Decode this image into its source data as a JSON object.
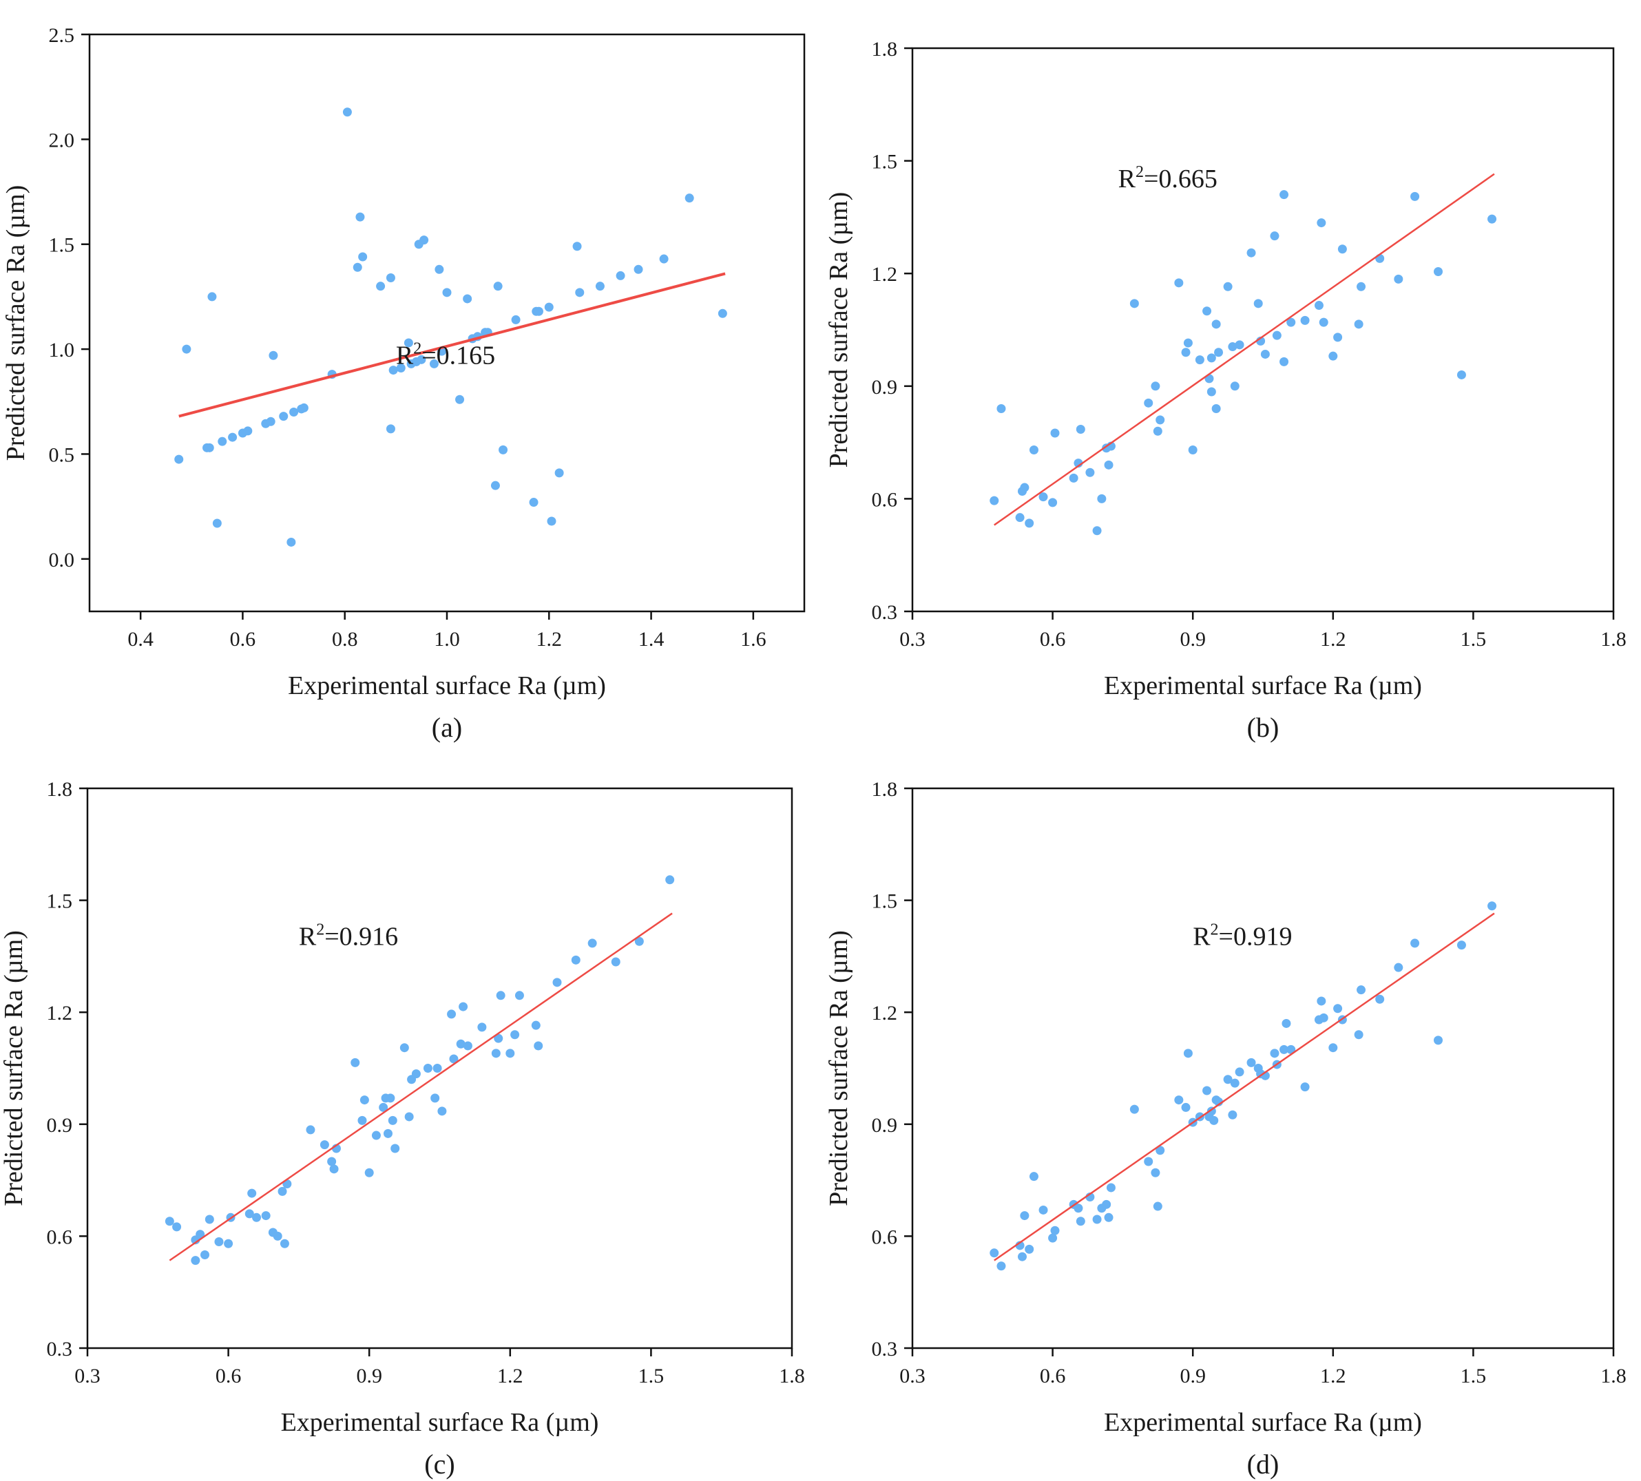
{
  "figure": {
    "colors": {
      "points": "#67b1f3",
      "fit_line": "#ee4b45",
      "axes": "#111111"
    }
  },
  "chart_data": [
    {
      "type": "scatter",
      "panel": "(a)",
      "xlabel": "Experimental surface Ra (µm)",
      "ylabel": "Predicted surface Ra (µm)",
      "xlim": [
        0.3,
        1.7
      ],
      "ylim": [
        -0.25,
        2.5
      ],
      "xticks": [
        0.4,
        0.6,
        0.8,
        1.0,
        1.2,
        1.4,
        1.6
      ],
      "yticks": [
        0.0,
        0.5,
        1.0,
        1.5,
        2.0,
        2.5
      ],
      "tick_decimals": 1,
      "fit_line": {
        "x": [
          0.475,
          1.545
        ],
        "y": [
          0.68,
          1.36
        ]
      },
      "annotation": {
        "prefix": "R",
        "sup": "2",
        "value": "=0.165",
        "at": [
          0.9,
          0.93
        ]
      },
      "points": [
        [
          0.475,
          0.475
        ],
        [
          0.49,
          1.0
        ],
        [
          0.53,
          0.53
        ],
        [
          0.535,
          0.53
        ],
        [
          0.54,
          1.25
        ],
        [
          0.55,
          0.17
        ],
        [
          0.56,
          0.56
        ],
        [
          0.58,
          0.58
        ],
        [
          0.6,
          0.6
        ],
        [
          0.61,
          0.61
        ],
        [
          0.645,
          0.645
        ],
        [
          0.655,
          0.655
        ],
        [
          0.66,
          0.97
        ],
        [
          0.68,
          0.68
        ],
        [
          0.695,
          0.08
        ],
        [
          0.7,
          0.7
        ],
        [
          0.715,
          0.715
        ],
        [
          0.72,
          0.72
        ],
        [
          0.775,
          0.88
        ],
        [
          0.805,
          2.13
        ],
        [
          0.825,
          1.39
        ],
        [
          0.83,
          1.63
        ],
        [
          0.835,
          1.44
        ],
        [
          0.87,
          1.3
        ],
        [
          0.89,
          1.34
        ],
        [
          0.89,
          0.62
        ],
        [
          0.895,
          0.9
        ],
        [
          0.91,
          0.91
        ],
        [
          0.925,
          1.03
        ],
        [
          0.93,
          0.93
        ],
        [
          0.94,
          0.94
        ],
        [
          0.945,
          1.5
        ],
        [
          0.95,
          0.95
        ],
        [
          0.955,
          1.52
        ],
        [
          0.975,
          0.93
        ],
        [
          0.985,
          1.38
        ],
        [
          0.99,
          0.99
        ],
        [
          1.0,
          1.27
        ],
        [
          1.025,
          0.76
        ],
        [
          1.04,
          1.24
        ],
        [
          1.05,
          1.05
        ],
        [
          1.06,
          1.06
        ],
        [
          1.075,
          1.08
        ],
        [
          1.08,
          1.08
        ],
        [
          1.095,
          0.35
        ],
        [
          1.1,
          1.3
        ],
        [
          1.11,
          0.52
        ],
        [
          1.135,
          1.14
        ],
        [
          1.17,
          0.27
        ],
        [
          1.175,
          1.18
        ],
        [
          1.18,
          1.18
        ],
        [
          1.2,
          1.2
        ],
        [
          1.205,
          0.18
        ],
        [
          1.22,
          0.41
        ],
        [
          1.255,
          1.49
        ],
        [
          1.26,
          1.27
        ],
        [
          1.3,
          1.3
        ],
        [
          1.34,
          1.35
        ],
        [
          1.375,
          1.38
        ],
        [
          1.425,
          1.43
        ],
        [
          1.475,
          1.72
        ],
        [
          1.54,
          1.17
        ]
      ]
    },
    {
      "type": "scatter",
      "panel": "(b)",
      "xlabel": "Experimental surface Ra (µm)",
      "ylabel": "Predicted surface Ra (µm)",
      "xlim": [
        0.3,
        1.8
      ],
      "ylim": [
        0.3,
        1.8
      ],
      "xticks": [
        0.3,
        0.6,
        0.9,
        1.2,
        1.5,
        1.8
      ],
      "yticks": [
        0.3,
        0.6,
        0.9,
        1.2,
        1.5,
        1.8
      ],
      "tick_decimals": 1,
      "fit_line": {
        "x": [
          0.475,
          1.545
        ],
        "y": [
          0.53,
          1.465
        ]
      },
      "annotation": {
        "prefix": "R",
        "sup": "2",
        "value": "=0.665",
        "at": [
          0.74,
          1.43
        ]
      },
      "points": [
        [
          0.475,
          0.595
        ],
        [
          0.49,
          0.84
        ],
        [
          0.53,
          0.55
        ],
        [
          0.535,
          0.62
        ],
        [
          0.54,
          0.63
        ],
        [
          0.55,
          0.535
        ],
        [
          0.56,
          0.73
        ],
        [
          0.58,
          0.605
        ],
        [
          0.6,
          0.59
        ],
        [
          0.605,
          0.775
        ],
        [
          0.645,
          0.655
        ],
        [
          0.655,
          0.695
        ],
        [
          0.66,
          0.785
        ],
        [
          0.68,
          0.67
        ],
        [
          0.695,
          0.515
        ],
        [
          0.705,
          0.6
        ],
        [
          0.715,
          0.735
        ],
        [
          0.72,
          0.69
        ],
        [
          0.725,
          0.74
        ],
        [
          0.775,
          1.12
        ],
        [
          0.805,
          0.855
        ],
        [
          0.82,
          0.9
        ],
        [
          0.825,
          0.78
        ],
        [
          0.83,
          0.81
        ],
        [
          0.87,
          1.175
        ],
        [
          0.885,
          0.99
        ],
        [
          0.89,
          1.015
        ],
        [
          0.9,
          0.73
        ],
        [
          0.915,
          0.97
        ],
        [
          0.93,
          1.1
        ],
        [
          0.935,
          0.92
        ],
        [
          0.94,
          0.885
        ],
        [
          0.94,
          0.975
        ],
        [
          0.95,
          1.065
        ],
        [
          0.95,
          0.84
        ],
        [
          0.955,
          0.99
        ],
        [
          0.975,
          1.165
        ],
        [
          0.985,
          1.005
        ],
        [
          0.99,
          0.9
        ],
        [
          1.0,
          1.01
        ],
        [
          1.025,
          1.255
        ],
        [
          1.04,
          1.12
        ],
        [
          1.045,
          1.02
        ],
        [
          1.055,
          0.985
        ],
        [
          1.075,
          1.3
        ],
        [
          1.08,
          1.035
        ],
        [
          1.095,
          1.41
        ],
        [
          1.095,
          0.965
        ],
        [
          1.11,
          1.07
        ],
        [
          1.14,
          1.075
        ],
        [
          1.17,
          1.115
        ],
        [
          1.175,
          1.335
        ],
        [
          1.18,
          1.07
        ],
        [
          1.2,
          0.98
        ],
        [
          1.21,
          1.03
        ],
        [
          1.22,
          1.265
        ],
        [
          1.255,
          1.065
        ],
        [
          1.26,
          1.165
        ],
        [
          1.3,
          1.24
        ],
        [
          1.34,
          1.185
        ],
        [
          1.375,
          1.405
        ],
        [
          1.425,
          1.205
        ],
        [
          1.475,
          0.93
        ],
        [
          1.54,
          1.345
        ]
      ]
    },
    {
      "type": "scatter",
      "panel": "(c)",
      "xlabel": "Experimental surface Ra (µm)",
      "ylabel": "Predicted surface Ra (µm)",
      "xlim": [
        0.3,
        1.8
      ],
      "ylim": [
        0.3,
        1.8
      ],
      "xticks": [
        0.3,
        0.6,
        0.9,
        1.2,
        1.5,
        1.8
      ],
      "yticks": [
        0.3,
        0.6,
        0.9,
        1.2,
        1.5,
        1.8
      ],
      "tick_decimals": 1,
      "fit_line": {
        "x": [
          0.475,
          1.545
        ],
        "y": [
          0.535,
          1.465
        ]
      },
      "annotation": {
        "prefix": "R",
        "sup": "2",
        "value": "=0.916",
        "at": [
          0.75,
          1.38
        ]
      },
      "points": [
        [
          0.475,
          0.64
        ],
        [
          0.49,
          0.625
        ],
        [
          0.53,
          0.59
        ],
        [
          0.53,
          0.535
        ],
        [
          0.54,
          0.605
        ],
        [
          0.55,
          0.55
        ],
        [
          0.56,
          0.645
        ],
        [
          0.58,
          0.585
        ],
        [
          0.6,
          0.58
        ],
        [
          0.605,
          0.65
        ],
        [
          0.645,
          0.66
        ],
        [
          0.65,
          0.715
        ],
        [
          0.66,
          0.65
        ],
        [
          0.68,
          0.655
        ],
        [
          0.695,
          0.61
        ],
        [
          0.705,
          0.6
        ],
        [
          0.715,
          0.72
        ],
        [
          0.72,
          0.58
        ],
        [
          0.725,
          0.74
        ],
        [
          0.775,
          0.885
        ],
        [
          0.805,
          0.845
        ],
        [
          0.82,
          0.8
        ],
        [
          0.825,
          0.78
        ],
        [
          0.83,
          0.835
        ],
        [
          0.87,
          1.065
        ],
        [
          0.885,
          0.91
        ],
        [
          0.89,
          0.965
        ],
        [
          0.9,
          0.77
        ],
        [
          0.915,
          0.87
        ],
        [
          0.93,
          0.945
        ],
        [
          0.935,
          0.97
        ],
        [
          0.94,
          0.875
        ],
        [
          0.945,
          0.97
        ],
        [
          0.95,
          0.91
        ],
        [
          0.955,
          0.835
        ],
        [
          0.975,
          1.105
        ],
        [
          0.985,
          0.92
        ],
        [
          0.99,
          1.02
        ],
        [
          1.0,
          1.035
        ],
        [
          1.025,
          1.05
        ],
        [
          1.04,
          0.97
        ],
        [
          1.045,
          1.05
        ],
        [
          1.055,
          0.935
        ],
        [
          1.075,
          1.195
        ],
        [
          1.08,
          1.075
        ],
        [
          1.095,
          1.115
        ],
        [
          1.1,
          1.215
        ],
        [
          1.11,
          1.11
        ],
        [
          1.14,
          1.16
        ],
        [
          1.17,
          1.09
        ],
        [
          1.175,
          1.13
        ],
        [
          1.18,
          1.245
        ],
        [
          1.2,
          1.09
        ],
        [
          1.21,
          1.14
        ],
        [
          1.22,
          1.245
        ],
        [
          1.255,
          1.165
        ],
        [
          1.26,
          1.11
        ],
        [
          1.3,
          1.28
        ],
        [
          1.34,
          1.34
        ],
        [
          1.375,
          1.385
        ],
        [
          1.425,
          1.335
        ],
        [
          1.475,
          1.39
        ],
        [
          1.54,
          1.555
        ]
      ]
    },
    {
      "type": "scatter",
      "panel": "(d)",
      "xlabel": "Experimental surface Ra (µm)",
      "ylabel": "Predicted surface Ra (µm)",
      "xlim": [
        0.3,
        1.8
      ],
      "ylim": [
        0.3,
        1.8
      ],
      "xticks": [
        0.3,
        0.6,
        0.9,
        1.2,
        1.5,
        1.8
      ],
      "yticks": [
        0.3,
        0.6,
        0.9,
        1.2,
        1.5,
        1.8
      ],
      "tick_decimals": 1,
      "fit_line": {
        "x": [
          0.475,
          1.545
        ],
        "y": [
          0.535,
          1.465
        ]
      },
      "annotation": {
        "prefix": "R",
        "sup": "2",
        "value": "=0.919",
        "at": [
          0.9,
          1.38
        ]
      },
      "points": [
        [
          0.475,
          0.555
        ],
        [
          0.49,
          0.52
        ],
        [
          0.53,
          0.575
        ],
        [
          0.535,
          0.545
        ],
        [
          0.54,
          0.655
        ],
        [
          0.55,
          0.565
        ],
        [
          0.56,
          0.76
        ],
        [
          0.58,
          0.67
        ],
        [
          0.6,
          0.595
        ],
        [
          0.605,
          0.615
        ],
        [
          0.645,
          0.685
        ],
        [
          0.655,
          0.675
        ],
        [
          0.66,
          0.64
        ],
        [
          0.68,
          0.705
        ],
        [
          0.695,
          0.645
        ],
        [
          0.705,
          0.675
        ],
        [
          0.715,
          0.685
        ],
        [
          0.72,
          0.65
        ],
        [
          0.725,
          0.73
        ],
        [
          0.775,
          0.94
        ],
        [
          0.805,
          0.8
        ],
        [
          0.82,
          0.77
        ],
        [
          0.825,
          0.68
        ],
        [
          0.83,
          0.83
        ],
        [
          0.87,
          0.965
        ],
        [
          0.885,
          0.945
        ],
        [
          0.89,
          1.09
        ],
        [
          0.9,
          0.905
        ],
        [
          0.915,
          0.92
        ],
        [
          0.93,
          0.99
        ],
        [
          0.935,
          0.92
        ],
        [
          0.94,
          0.935
        ],
        [
          0.945,
          0.91
        ],
        [
          0.95,
          0.965
        ],
        [
          0.955,
          0.96
        ],
        [
          0.975,
          1.02
        ],
        [
          0.985,
          0.925
        ],
        [
          0.99,
          1.01
        ],
        [
          1.0,
          1.04
        ],
        [
          1.025,
          1.065
        ],
        [
          1.04,
          1.05
        ],
        [
          1.045,
          1.035
        ],
        [
          1.055,
          1.03
        ],
        [
          1.075,
          1.09
        ],
        [
          1.08,
          1.06
        ],
        [
          1.095,
          1.1
        ],
        [
          1.1,
          1.17
        ],
        [
          1.11,
          1.1
        ],
        [
          1.14,
          1.0
        ],
        [
          1.17,
          1.18
        ],
        [
          1.175,
          1.23
        ],
        [
          1.18,
          1.185
        ],
        [
          1.2,
          1.105
        ],
        [
          1.21,
          1.21
        ],
        [
          1.22,
          1.18
        ],
        [
          1.255,
          1.14
        ],
        [
          1.26,
          1.26
        ],
        [
          1.3,
          1.235
        ],
        [
          1.34,
          1.32
        ],
        [
          1.375,
          1.385
        ],
        [
          1.425,
          1.125
        ],
        [
          1.475,
          1.38
        ],
        [
          1.54,
          1.485
        ]
      ]
    }
  ]
}
